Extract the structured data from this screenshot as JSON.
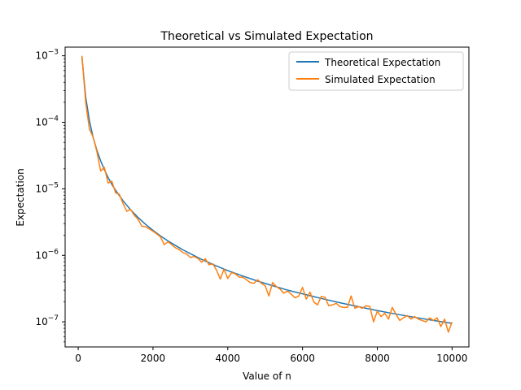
{
  "chart_data": {
    "type": "line",
    "title": "Theoretical vs Simulated Expectation",
    "xlabel": "Value of n",
    "ylabel": "Expectation",
    "yscale": "log",
    "xlim": [
      -350,
      10450
    ],
    "ylim": [
      4.2e-08,
      0.00135
    ],
    "xticks": [
      0,
      2000,
      4000,
      6000,
      8000,
      10000
    ],
    "xtick_labels": [
      "0",
      "2000",
      "4000",
      "6000",
      "8000",
      "10000"
    ],
    "yticks": [
      1e-07,
      1e-06,
      1e-05,
      0.0001,
      0.001
    ],
    "ytick_labels": [
      {
        "base": "10",
        "exp": "−7"
      },
      {
        "base": "10",
        "exp": "−6"
      },
      {
        "base": "10",
        "exp": "−5"
      },
      {
        "base": "10",
        "exp": "−4"
      },
      {
        "base": "10",
        "exp": "−3"
      }
    ],
    "legend_position": "upper right",
    "grid": false,
    "series": [
      {
        "name": "Theoretical Expectation",
        "color": "#1f77b4",
        "formula_samples": "y = 9.5 / n^2",
        "x": [
          100,
          200,
          300,
          400,
          500,
          600,
          700,
          800,
          900,
          1000,
          1200,
          1400,
          1600,
          1800,
          2000,
          2200,
          2400,
          2600,
          2800,
          3000,
          3300,
          3600,
          4000,
          4400,
          4800,
          5200,
          5600,
          6000,
          6500,
          7000,
          7500,
          8000,
          8500,
          9000,
          9500,
          10000
        ],
        "y": [
          0.00095,
          0.00024,
          0.000106,
          5.9e-05,
          3.8e-05,
          2.64e-05,
          1.94e-05,
          1.48e-05,
          1.17e-05,
          9.5e-06,
          6.6e-06,
          4.85e-06,
          3.71e-06,
          2.93e-06,
          2.38e-06,
          1.96e-06,
          1.65e-06,
          1.41e-06,
          1.21e-06,
          1.06e-06,
          8.7e-07,
          7.3e-07,
          5.9e-07,
          4.9e-07,
          4.1e-07,
          3.5e-07,
          3e-07,
          2.64e-07,
          2.25e-07,
          1.94e-07,
          1.69e-07,
          1.48e-07,
          1.31e-07,
          1.17e-07,
          1.05e-07,
          9.5e-08
        ]
      },
      {
        "name": "Simulated Expectation",
        "color": "#ff7f0e",
        "x": [
          100,
          200,
          300,
          400,
          500,
          600,
          700,
          800,
          900,
          1000,
          1100,
          1200,
          1300,
          1400,
          1500,
          1600,
          1700,
          1800,
          1900,
          2000,
          2100,
          2200,
          2300,
          2400,
          2500,
          2600,
          2700,
          2800,
          2900,
          3000,
          3100,
          3200,
          3300,
          3400,
          3500,
          3600,
          3700,
          3800,
          3900,
          4000,
          4100,
          4200,
          4300,
          4400,
          4500,
          4600,
          4700,
          4800,
          4900,
          5000,
          5100,
          5200,
          5300,
          5400,
          5500,
          5600,
          5700,
          5800,
          5900,
          6000,
          6100,
          6200,
          6300,
          6400,
          6500,
          6600,
          6700,
          6800,
          6900,
          7000,
          7100,
          7200,
          7300,
          7400,
          7500,
          7600,
          7700,
          7800,
          7900,
          8000,
          8100,
          8200,
          8300,
          8400,
          8500,
          8600,
          8700,
          8800,
          8900,
          9000,
          9100,
          9200,
          9300,
          9400,
          9500,
          9600,
          9700,
          9800,
          9900,
          10000
        ],
        "y": [
          0.001,
          0.0002,
          7.9e-05,
          6e-05,
          3.6e-05,
          1.85e-05,
          2.1e-05,
          1.22e-05,
          1.3e-05,
          8.7e-06,
          8.3e-06,
          6e-06,
          4.6e-06,
          4.9e-06,
          4e-06,
          3.5e-06,
          2.75e-06,
          2.7e-06,
          2.5e-06,
          2.3e-06,
          2.1e-06,
          1.9e-06,
          1.45e-06,
          1.6e-06,
          1.45e-06,
          1.3e-06,
          1.22e-06,
          1.1e-06,
          1.05e-06,
          9.3e-07,
          9.6e-07,
          9e-07,
          7.9e-07,
          8.9e-07,
          7.2e-07,
          7.5e-07,
          6e-07,
          4.4e-07,
          6.2e-07,
          4.5e-07,
          5.5e-07,
          5.3e-07,
          4.7e-07,
          4.7e-07,
          4.3e-07,
          3.9e-07,
          3.8e-07,
          4.3e-07,
          3.8e-07,
          3.5e-07,
          2.45e-07,
          3.9e-07,
          3.4e-07,
          3.1e-07,
          2.7e-07,
          2.9e-07,
          2.6e-07,
          2.3e-07,
          2.45e-07,
          3.3e-07,
          2.2e-07,
          2.8e-07,
          2e-07,
          1.8e-07,
          2.4e-07,
          2.35e-07,
          1.75e-07,
          1.8e-07,
          1.9e-07,
          1.7e-07,
          1.65e-07,
          1.65e-07,
          2.45e-07,
          1.6e-07,
          1.7e-07,
          1.6e-07,
          1.75e-07,
          1.7e-07,
          1e-07,
          1.45e-07,
          1.2e-07,
          1.35e-07,
          1.1e-07,
          1.65e-07,
          1.3e-07,
          1.05e-07,
          1.15e-07,
          1.25e-07,
          1.1e-07,
          1.2e-07,
          1.1e-07,
          1.05e-07,
          1e-07,
          1.15e-07,
          1.05e-07,
          1.15e-07,
          8.5e-08,
          1.1e-07,
          7e-08,
          1e-07
        ]
      }
    ]
  }
}
